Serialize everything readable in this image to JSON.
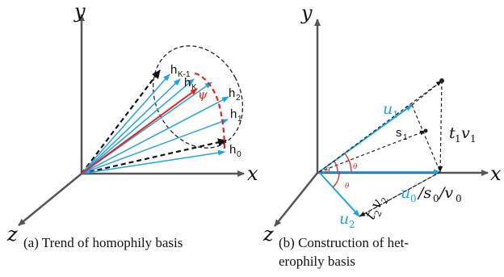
{
  "panel_a": {
    "axis_y": "y",
    "axis_x": "x",
    "axis_z": "z",
    "label_hK1": "h",
    "label_hK1_sub": "K-1",
    "label_hK": "h",
    "label_hK_sub": "K",
    "label_psi": "ψ",
    "label_h2": "h",
    "label_h2_sub": "2",
    "label_h1": "h",
    "label_h1_sub": "1",
    "label_h0": "h",
    "label_h0_sub": "0",
    "caption": "(a) Trend of homophily basis"
  },
  "panel_b": {
    "axis_y": "y",
    "axis_x": "x",
    "axis_z": "z",
    "label_u1": "u",
    "label_u1_sub": "1",
    "label_s1": "s",
    "label_s1_sub": "1",
    "label_t1v1_t": "t",
    "label_t1v1_t_sub": "1",
    "label_t1v1_v": "v",
    "label_t1v1_v_sub": "1",
    "label_theta_a": "θ",
    "label_theta_b": "θ",
    "label_theta_c": "θ",
    "label_t2v2_t": "t",
    "label_t2v2_t_sub": "2",
    "label_t2v2_v": "v",
    "label_t2v2_v_sub": "2",
    "label_u0": "u",
    "label_u0_sub": "0",
    "label_u0_rest": "/s",
    "label_s0_sub": "0",
    "label_v0": "/v",
    "label_v0_sub": "0",
    "label_u2": "u",
    "label_u2_sub": "2",
    "caption_line1": "(b)    Construction    of    het-",
    "caption_line2": "erophily basis"
  },
  "colors": {
    "axis": "#555555",
    "blue": "#1fa3e0",
    "red": "#e8221b",
    "dashed": "#222222",
    "text": "#111111"
  }
}
